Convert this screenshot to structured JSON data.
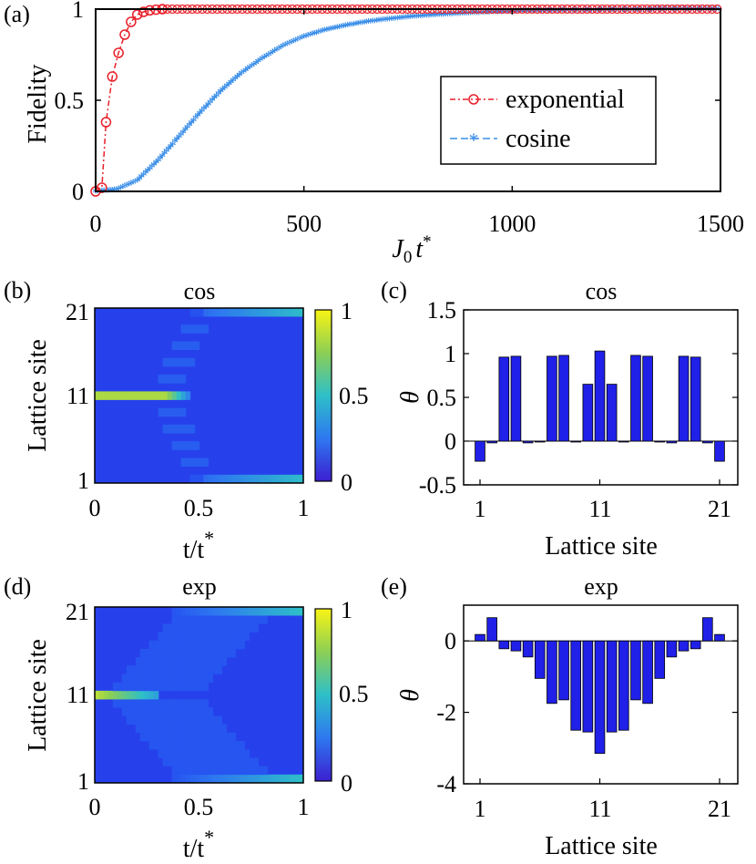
{
  "chart_data": {
    "panel_a": {
      "type": "line",
      "panel_label": "(a)",
      "xlabel_base": "J",
      "xlabel_sub": "0",
      "xlabel_var": "t",
      "xlabel_sup": "*",
      "ylabel": "Fidelity",
      "xlim": [
        0,
        1500
      ],
      "ylim": [
        0,
        1
      ],
      "xticks": [
        0,
        500,
        1000,
        1500
      ],
      "yticks": [
        0,
        0.5,
        1
      ],
      "series": [
        {
          "name": "exponential",
          "color": "#e8202a",
          "marker": "circle",
          "x": [
            0,
            15,
            25,
            40,
            55,
            70,
            85,
            100,
            115,
            130,
            145,
            160
          ],
          "y": [
            0.0,
            0.02,
            0.38,
            0.63,
            0.76,
            0.86,
            0.93,
            0.97,
            0.985,
            0.993,
            0.997,
            1.0
          ]
        },
        {
          "name": "cosine",
          "color": "#3a8ee8",
          "marker": "star",
          "x": [
            0,
            50,
            100,
            150,
            200,
            250,
            300,
            350,
            400,
            450,
            500,
            550,
            600,
            650,
            700,
            750,
            800,
            850,
            900,
            950,
            1000,
            1050,
            1100,
            1150,
            1200,
            1250,
            1300,
            1350,
            1400,
            1450,
            1500
          ],
          "y": [
            0.0,
            0.01,
            0.06,
            0.17,
            0.3,
            0.43,
            0.55,
            0.65,
            0.73,
            0.8,
            0.85,
            0.885,
            0.91,
            0.93,
            0.945,
            0.957,
            0.966,
            0.973,
            0.979,
            0.984,
            0.988,
            0.991,
            0.993,
            0.995,
            0.996,
            0.997,
            0.998,
            0.999,
            0.999,
            1.0,
            1.0
          ]
        }
      ]
    },
    "panel_b": {
      "type": "heatmap",
      "panel_label": "(b)",
      "title": "cos",
      "xlabel": "t/t",
      "xlabel_sup": "*",
      "ylabel": "Lattice site",
      "xticks": [
        "0",
        "0.5",
        "1"
      ],
      "yticks": [
        "1",
        "11",
        "21"
      ],
      "colorbar_ticks": [
        "0",
        "0.5",
        "1"
      ],
      "description_cells": [
        {
          "site": 11,
          "t_start": 0.0,
          "t_end": 0.45,
          "peak": 0.85
        },
        {
          "site": 1,
          "t_start": 0.5,
          "t_end": 1.0,
          "peak": 0.45
        },
        {
          "site": 21,
          "t_start": 0.5,
          "t_end": 1.0,
          "peak": 0.45
        }
      ]
    },
    "panel_c": {
      "type": "bar",
      "panel_label": "(c)",
      "title": "cos",
      "xlabel": "Lattice site",
      "ylabel": "θ",
      "xticks": [
        "1",
        "11",
        "21"
      ],
      "yticks": [
        "-0.5",
        "0",
        "0.5",
        "1",
        "1.5"
      ],
      "ylim": [
        -0.5,
        1.5
      ],
      "categories": [
        1,
        2,
        3,
        4,
        5,
        6,
        7,
        8,
        9,
        10,
        11,
        12,
        13,
        14,
        15,
        16,
        17,
        18,
        19,
        20,
        21
      ],
      "values": [
        -0.23,
        -0.02,
        0.96,
        0.97,
        -0.02,
        -0.01,
        0.97,
        0.98,
        -0.01,
        0.65,
        1.03,
        0.65,
        -0.01,
        0.98,
        0.97,
        -0.01,
        -0.02,
        0.97,
        0.96,
        -0.02,
        -0.23
      ]
    },
    "panel_d": {
      "type": "heatmap",
      "panel_label": "(d)",
      "title": "exp",
      "xlabel": "t/t",
      "xlabel_sup": "*",
      "ylabel": "Lattice site",
      "xticks": [
        "0",
        "0.5",
        "1"
      ],
      "yticks": [
        "1",
        "11",
        "21"
      ],
      "colorbar_ticks": [
        "0",
        "0.5",
        "1"
      ]
    },
    "panel_e": {
      "type": "bar",
      "panel_label": "(e)",
      "title": "exp",
      "xlabel": "Lattice site",
      "ylabel": "θ",
      "xticks": [
        "1",
        "11",
        "21"
      ],
      "yticks": [
        "-4",
        "-2",
        "0"
      ],
      "ylim": [
        -4,
        1
      ],
      "categories": [
        1,
        2,
        3,
        4,
        5,
        6,
        7,
        8,
        9,
        10,
        11,
        12,
        13,
        14,
        15,
        16,
        17,
        18,
        19,
        20,
        21
      ],
      "values": [
        0.18,
        0.65,
        -0.22,
        -0.28,
        -0.45,
        -1.05,
        -1.75,
        -1.65,
        -2.5,
        -2.55,
        -3.15,
        -2.55,
        -2.5,
        -1.65,
        -1.75,
        -1.05,
        -0.45,
        -0.28,
        -0.22,
        0.65,
        0.18
      ]
    }
  },
  "colors": {
    "bar": "#2020e8",
    "bar_stroke": "#000000"
  }
}
